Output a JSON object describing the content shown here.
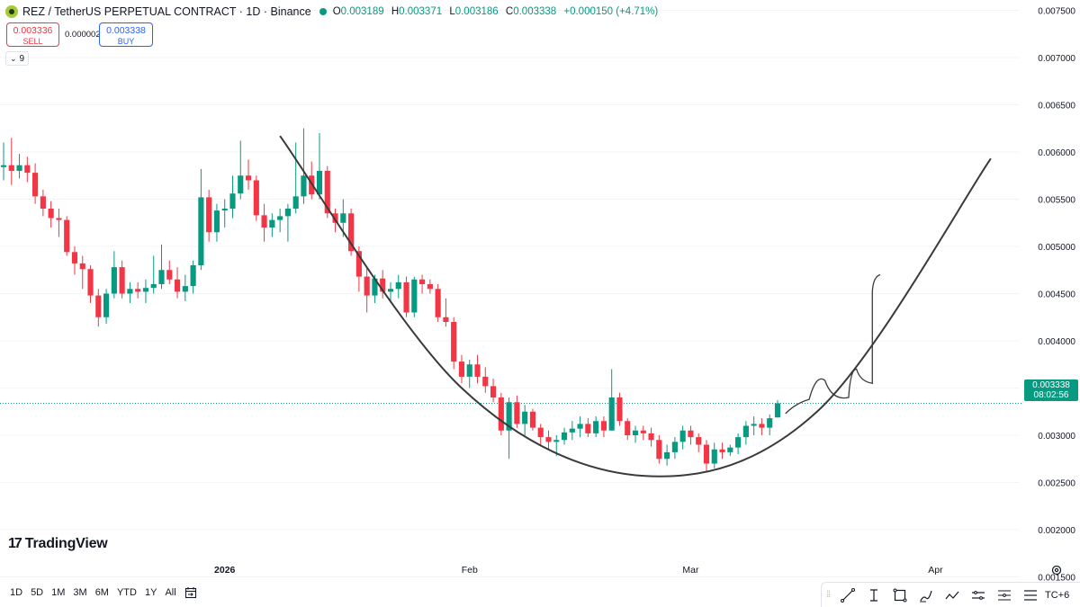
{
  "header": {
    "symbol_title": "REZ / TetherUS PERPETUAL CONTRACT · 1D · Binance",
    "ohlc": {
      "open_label": "O",
      "open": "0.003189",
      "high_label": "H",
      "high": "0.003371",
      "low_label": "L",
      "low": "0.003186",
      "close_label": "C",
      "close": "0.003338",
      "change": "+0.000150 (+4.71%)"
    }
  },
  "trade": {
    "sell_price": "0.003336",
    "sell_label": "SELL",
    "spread": "0.000002",
    "buy_price": "0.003338",
    "buy_label": "BUY"
  },
  "indicators_toggle": {
    "count": "9"
  },
  "branding": {
    "name": "TradingView"
  },
  "last_price": {
    "price": "0.003338",
    "countdown": "08:02:56"
  },
  "range_buttons": [
    "1D",
    "5D",
    "1M",
    "3M",
    "6M",
    "YTD",
    "1Y",
    "All"
  ],
  "timezone_label": "TC+6",
  "colors": {
    "up": "#089981",
    "down": "#f23645",
    "curve": "#3a3a3a",
    "axis_text": "#131722",
    "last_price_line": "#089981"
  },
  "icons": [
    "coin-logo-icon",
    "chevron-down-icon",
    "goto-date-icon",
    "trend-line-icon",
    "text-cursor-icon",
    "rectangle-icon",
    "brush-icon",
    "path-icon",
    "horizontal-lines-icon",
    "fib-icon",
    "menu-lines-icon",
    "settings-icon"
  ],
  "chart_data": {
    "type": "candlestick",
    "y_axis": {
      "labels": [
        "0.007500",
        "0.007000",
        "0.006500",
        "0.006000",
        "0.005500",
        "0.005000",
        "0.004500",
        "0.004000",
        "0.003500",
        "0.003000",
        "0.002500",
        "0.002000",
        "0.001500"
      ],
      "range": [
        0.0014,
        0.0076
      ]
    },
    "x_axis": {
      "labels": [
        {
          "label": "2026",
          "date": "2026-01-01",
          "bold": true
        },
        {
          "label": "Feb",
          "date": "2026-02-01"
        },
        {
          "label": "Mar",
          "date": "2026-03-01"
        },
        {
          "label": "Apr",
          "date": "2026-04-01"
        }
      ],
      "range": [
        "2025-12-04",
        "2026-04-12"
      ]
    },
    "candles": [
      {
        "date": "2025-12-04",
        "o": 0.00584,
        "h": 0.0061,
        "l": 0.0057,
        "c": 0.00586
      },
      {
        "date": "2025-12-05",
        "o": 0.00586,
        "h": 0.00615,
        "l": 0.00565,
        "c": 0.0058
      },
      {
        "date": "2025-12-06",
        "o": 0.0058,
        "h": 0.00598,
        "l": 0.00572,
        "c": 0.00586
      },
      {
        "date": "2025-12-07",
        "o": 0.00586,
        "h": 0.00595,
        "l": 0.00568,
        "c": 0.00578
      },
      {
        "date": "2025-12-08",
        "o": 0.00578,
        "h": 0.00588,
        "l": 0.00545,
        "c": 0.00553
      },
      {
        "date": "2025-12-09",
        "o": 0.00553,
        "h": 0.0056,
        "l": 0.00532,
        "c": 0.0054
      },
      {
        "date": "2025-12-10",
        "o": 0.0054,
        "h": 0.00548,
        "l": 0.0052,
        "c": 0.0053
      },
      {
        "date": "2025-12-11",
        "o": 0.0053,
        "h": 0.0054,
        "l": 0.0051,
        "c": 0.00528
      },
      {
        "date": "2025-12-12",
        "o": 0.00528,
        "h": 0.00532,
        "l": 0.0049,
        "c": 0.00494
      },
      {
        "date": "2025-12-13",
        "o": 0.00494,
        "h": 0.005,
        "l": 0.0047,
        "c": 0.00482
      },
      {
        "date": "2025-12-14",
        "o": 0.00482,
        "h": 0.0049,
        "l": 0.00455,
        "c": 0.00476
      },
      {
        "date": "2025-12-15",
        "o": 0.00476,
        "h": 0.0048,
        "l": 0.0044,
        "c": 0.00448
      },
      {
        "date": "2025-12-16",
        "o": 0.00448,
        "h": 0.00455,
        "l": 0.00415,
        "c": 0.00425
      },
      {
        "date": "2025-12-17",
        "o": 0.00425,
        "h": 0.00455,
        "l": 0.00418,
        "c": 0.0045
      },
      {
        "date": "2025-12-18",
        "o": 0.0045,
        "h": 0.00495,
        "l": 0.00445,
        "c": 0.00478
      },
      {
        "date": "2025-12-19",
        "o": 0.00478,
        "h": 0.00485,
        "l": 0.00445,
        "c": 0.0045
      },
      {
        "date": "2025-12-20",
        "o": 0.0045,
        "h": 0.00462,
        "l": 0.0044,
        "c": 0.00455
      },
      {
        "date": "2025-12-21",
        "o": 0.00455,
        "h": 0.00462,
        "l": 0.00445,
        "c": 0.00452
      },
      {
        "date": "2025-12-22",
        "o": 0.00452,
        "h": 0.00465,
        "l": 0.0044,
        "c": 0.00456
      },
      {
        "date": "2025-12-23",
        "o": 0.00456,
        "h": 0.0049,
        "l": 0.0045,
        "c": 0.0046
      },
      {
        "date": "2025-12-24",
        "o": 0.0046,
        "h": 0.00502,
        "l": 0.00455,
        "c": 0.00475
      },
      {
        "date": "2025-12-25",
        "o": 0.00475,
        "h": 0.00485,
        "l": 0.0046,
        "c": 0.00465
      },
      {
        "date": "2025-12-26",
        "o": 0.00465,
        "h": 0.00478,
        "l": 0.00445,
        "c": 0.00452
      },
      {
        "date": "2025-12-27",
        "o": 0.00452,
        "h": 0.0047,
        "l": 0.00442,
        "c": 0.00458
      },
      {
        "date": "2025-12-28",
        "o": 0.00458,
        "h": 0.00485,
        "l": 0.0045,
        "c": 0.0048
      },
      {
        "date": "2025-12-29",
        "o": 0.0048,
        "h": 0.00582,
        "l": 0.00475,
        "c": 0.00552
      },
      {
        "date": "2025-12-30",
        "o": 0.00552,
        "h": 0.0056,
        "l": 0.00505,
        "c": 0.00515
      },
      {
        "date": "2025-12-31",
        "o": 0.00515,
        "h": 0.00545,
        "l": 0.00505,
        "c": 0.00538
      },
      {
        "date": "2026-01-01",
        "o": 0.00538,
        "h": 0.0055,
        "l": 0.0052,
        "c": 0.0054
      },
      {
        "date": "2026-01-02",
        "o": 0.0054,
        "h": 0.00575,
        "l": 0.0053,
        "c": 0.00556
      },
      {
        "date": "2026-01-03",
        "o": 0.00556,
        "h": 0.00612,
        "l": 0.0055,
        "c": 0.00575
      },
      {
        "date": "2026-01-04",
        "o": 0.00575,
        "h": 0.00592,
        "l": 0.0056,
        "c": 0.0057
      },
      {
        "date": "2026-01-05",
        "o": 0.0057,
        "h": 0.00575,
        "l": 0.00527,
        "c": 0.00533
      },
      {
        "date": "2026-01-06",
        "o": 0.00533,
        "h": 0.00545,
        "l": 0.00505,
        "c": 0.0052
      },
      {
        "date": "2026-01-07",
        "o": 0.0052,
        "h": 0.00535,
        "l": 0.0051,
        "c": 0.00528
      },
      {
        "date": "2026-01-08",
        "o": 0.00528,
        "h": 0.0054,
        "l": 0.00515,
        "c": 0.00532
      },
      {
        "date": "2026-01-09",
        "o": 0.00532,
        "h": 0.00545,
        "l": 0.00505,
        "c": 0.0054
      },
      {
        "date": "2026-01-10",
        "o": 0.0054,
        "h": 0.0061,
        "l": 0.00535,
        "c": 0.00553
      },
      {
        "date": "2026-01-11",
        "o": 0.00553,
        "h": 0.00625,
        "l": 0.00545,
        "c": 0.00575
      },
      {
        "date": "2026-01-12",
        "o": 0.00575,
        "h": 0.0059,
        "l": 0.0055,
        "c": 0.00555
      },
      {
        "date": "2026-01-13",
        "o": 0.00555,
        "h": 0.0062,
        "l": 0.0055,
        "c": 0.0058
      },
      {
        "date": "2026-01-14",
        "o": 0.0058,
        "h": 0.00585,
        "l": 0.0053,
        "c": 0.00535
      },
      {
        "date": "2026-01-15",
        "o": 0.00535,
        "h": 0.0054,
        "l": 0.00515,
        "c": 0.00525
      },
      {
        "date": "2026-01-16",
        "o": 0.00525,
        "h": 0.0055,
        "l": 0.0051,
        "c": 0.00535
      },
      {
        "date": "2026-01-17",
        "o": 0.00535,
        "h": 0.0054,
        "l": 0.0049,
        "c": 0.00495
      },
      {
        "date": "2026-01-18",
        "o": 0.00495,
        "h": 0.005,
        "l": 0.00452,
        "c": 0.00468
      },
      {
        "date": "2026-01-19",
        "o": 0.00468,
        "h": 0.00478,
        "l": 0.0043,
        "c": 0.00448
      },
      {
        "date": "2026-01-20",
        "o": 0.00448,
        "h": 0.0047,
        "l": 0.0044,
        "c": 0.00466
      },
      {
        "date": "2026-01-21",
        "o": 0.00466,
        "h": 0.00475,
        "l": 0.00445,
        "c": 0.00452
      },
      {
        "date": "2026-01-22",
        "o": 0.00452,
        "h": 0.00462,
        "l": 0.0044,
        "c": 0.00455
      },
      {
        "date": "2026-01-23",
        "o": 0.00455,
        "h": 0.0047,
        "l": 0.00445,
        "c": 0.00462
      },
      {
        "date": "2026-01-24",
        "o": 0.00462,
        "h": 0.00468,
        "l": 0.00425,
        "c": 0.0043
      },
      {
        "date": "2026-01-25",
        "o": 0.0043,
        "h": 0.00468,
        "l": 0.00425,
        "c": 0.00465
      },
      {
        "date": "2026-01-26",
        "o": 0.00465,
        "h": 0.0047,
        "l": 0.0045,
        "c": 0.0046
      },
      {
        "date": "2026-01-27",
        "o": 0.0046,
        "h": 0.00465,
        "l": 0.0045,
        "c": 0.00455
      },
      {
        "date": "2026-01-28",
        "o": 0.00455,
        "h": 0.0046,
        "l": 0.0042,
        "c": 0.00425
      },
      {
        "date": "2026-01-29",
        "o": 0.00425,
        "h": 0.00445,
        "l": 0.00415,
        "c": 0.0042
      },
      {
        "date": "2026-01-30",
        "o": 0.0042,
        "h": 0.00425,
        "l": 0.0037,
        "c": 0.00378
      },
      {
        "date": "2026-01-31",
        "o": 0.00378,
        "h": 0.00385,
        "l": 0.00355,
        "c": 0.00362
      },
      {
        "date": "2026-02-01",
        "o": 0.00362,
        "h": 0.0038,
        "l": 0.0035,
        "c": 0.00375
      },
      {
        "date": "2026-02-02",
        "o": 0.00375,
        "h": 0.00385,
        "l": 0.00355,
        "c": 0.00362
      },
      {
        "date": "2026-02-03",
        "o": 0.00362,
        "h": 0.00372,
        "l": 0.00345,
        "c": 0.00352
      },
      {
        "date": "2026-02-04",
        "o": 0.00352,
        "h": 0.0036,
        "l": 0.00335,
        "c": 0.0034
      },
      {
        "date": "2026-02-05",
        "o": 0.0034,
        "h": 0.00345,
        "l": 0.003,
        "c": 0.00305
      },
      {
        "date": "2026-02-06",
        "o": 0.00305,
        "h": 0.0034,
        "l": 0.00275,
        "c": 0.00335
      },
      {
        "date": "2026-02-07",
        "o": 0.00335,
        "h": 0.00342,
        "l": 0.00308,
        "c": 0.00312
      },
      {
        "date": "2026-02-08",
        "o": 0.00312,
        "h": 0.00332,
        "l": 0.003,
        "c": 0.00325
      },
      {
        "date": "2026-02-09",
        "o": 0.00325,
        "h": 0.00328,
        "l": 0.00305,
        "c": 0.00308
      },
      {
        "date": "2026-02-10",
        "o": 0.00308,
        "h": 0.00312,
        "l": 0.0029,
        "c": 0.00298
      },
      {
        "date": "2026-02-11",
        "o": 0.00298,
        "h": 0.00305,
        "l": 0.00285,
        "c": 0.00293
      },
      {
        "date": "2026-02-12",
        "o": 0.00293,
        "h": 0.003,
        "l": 0.00278,
        "c": 0.00295
      },
      {
        "date": "2026-02-13",
        "o": 0.00295,
        "h": 0.00308,
        "l": 0.0029,
        "c": 0.00303
      },
      {
        "date": "2026-02-14",
        "o": 0.00303,
        "h": 0.00315,
        "l": 0.00295,
        "c": 0.00307
      },
      {
        "date": "2026-02-15",
        "o": 0.00307,
        "h": 0.0032,
        "l": 0.00298,
        "c": 0.00312
      },
      {
        "date": "2026-02-16",
        "o": 0.00312,
        "h": 0.00318,
        "l": 0.00298,
        "c": 0.00302
      },
      {
        "date": "2026-02-17",
        "o": 0.00302,
        "h": 0.0032,
        "l": 0.00298,
        "c": 0.00315
      },
      {
        "date": "2026-02-18",
        "o": 0.00315,
        "h": 0.0032,
        "l": 0.00298,
        "c": 0.00305
      },
      {
        "date": "2026-02-19",
        "o": 0.00305,
        "h": 0.0037,
        "l": 0.00305,
        "c": 0.0034
      },
      {
        "date": "2026-02-20",
        "o": 0.0034,
        "h": 0.00345,
        "l": 0.0031,
        "c": 0.00315
      },
      {
        "date": "2026-02-21",
        "o": 0.00315,
        "h": 0.00318,
        "l": 0.00295,
        "c": 0.003
      },
      {
        "date": "2026-02-22",
        "o": 0.003,
        "h": 0.0031,
        "l": 0.00292,
        "c": 0.00305
      },
      {
        "date": "2026-02-23",
        "o": 0.00305,
        "h": 0.0031,
        "l": 0.00295,
        "c": 0.00302
      },
      {
        "date": "2026-02-24",
        "o": 0.00302,
        "h": 0.00308,
        "l": 0.00288,
        "c": 0.00295
      },
      {
        "date": "2026-02-25",
        "o": 0.00295,
        "h": 0.003,
        "l": 0.0027,
        "c": 0.00275
      },
      {
        "date": "2026-02-26",
        "o": 0.00275,
        "h": 0.0029,
        "l": 0.00268,
        "c": 0.00282
      },
      {
        "date": "2026-02-27",
        "o": 0.00282,
        "h": 0.00298,
        "l": 0.00275,
        "c": 0.00293
      },
      {
        "date": "2026-02-28",
        "o": 0.00293,
        "h": 0.0031,
        "l": 0.00285,
        "c": 0.00305
      },
      {
        "date": "2026-03-01",
        "o": 0.00305,
        "h": 0.0031,
        "l": 0.0029,
        "c": 0.00298
      },
      {
        "date": "2026-03-02",
        "o": 0.00298,
        "h": 0.00302,
        "l": 0.00282,
        "c": 0.0029
      },
      {
        "date": "2026-03-03",
        "o": 0.0029,
        "h": 0.00295,
        "l": 0.00262,
        "c": 0.0027
      },
      {
        "date": "2026-03-04",
        "o": 0.0027,
        "h": 0.00292,
        "l": 0.00265,
        "c": 0.00285
      },
      {
        "date": "2026-03-05",
        "o": 0.00285,
        "h": 0.00292,
        "l": 0.00275,
        "c": 0.00282
      },
      {
        "date": "2026-03-06",
        "o": 0.00282,
        "h": 0.0029,
        "l": 0.00278,
        "c": 0.00287
      },
      {
        "date": "2026-03-07",
        "o": 0.00287,
        "h": 0.00302,
        "l": 0.0028,
        "c": 0.00298
      },
      {
        "date": "2026-03-08",
        "o": 0.00298,
        "h": 0.00315,
        "l": 0.0029,
        "c": 0.0031
      },
      {
        "date": "2026-03-09",
        "o": 0.0031,
        "h": 0.0032,
        "l": 0.003,
        "c": 0.00312
      },
      {
        "date": "2026-03-10",
        "o": 0.00312,
        "h": 0.00318,
        "l": 0.003,
        "c": 0.00308
      },
      {
        "date": "2026-03-11",
        "o": 0.00308,
        "h": 0.00322,
        "l": 0.003,
        "c": 0.00318
      },
      {
        "date": "2026-03-12",
        "o": 0.003189,
        "h": 0.003371,
        "l": 0.003186,
        "c": 0.003338
      }
    ],
    "last_price": 0.003338,
    "drawings": {
      "arc_curve": [
        {
          "date": "2026-01-08",
          "price": 0.00617
        },
        {
          "date": "2026-01-31",
          "price": 0.0035
        },
        {
          "date": "2026-02-23",
          "price": 0.00257
        },
        {
          "date": "2026-03-17",
          "price": 0.00325
        },
        {
          "date": "2026-04-08",
          "price": 0.00593
        }
      ],
      "projection_path": [
        {
          "date": "2026-03-13",
          "price": 0.00323
        },
        {
          "date": "2026-03-16",
          "price": 0.00338
        },
        {
          "date": "2026-03-18",
          "price": 0.00358
        },
        {
          "date": "2026-03-21",
          "price": 0.0034
        },
        {
          "date": "2026-03-22",
          "price": 0.0037
        },
        {
          "date": "2026-03-24",
          "price": 0.00355
        },
        {
          "date": "2026-03-24",
          "price": 0.00452
        },
        {
          "date": "2026-03-25",
          "price": 0.0047
        }
      ]
    }
  }
}
